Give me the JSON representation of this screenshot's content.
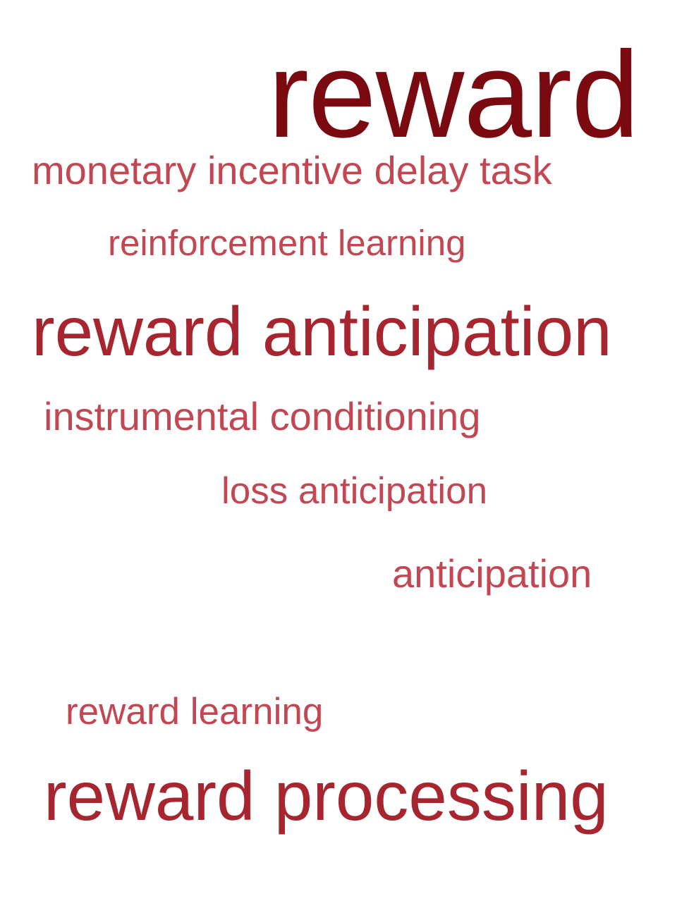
{
  "word_cloud": {
    "words": [
      {
        "text": "reward",
        "color": "#7a0a10"
      },
      {
        "text": "monetary incentive delay task",
        "color": "#c24752"
      },
      {
        "text": "reinforcement learning",
        "color": "#c24752"
      },
      {
        "text": "reward anticipation",
        "color": "#a6252e"
      },
      {
        "text": "instrumental conditioning",
        "color": "#c24752"
      },
      {
        "text": "loss anticipation",
        "color": "#c24752"
      },
      {
        "text": "anticipation",
        "color": "#c24752"
      },
      {
        "text": "reward learning",
        "color": "#c24752"
      },
      {
        "text": "reward processing",
        "color": "#a6252e"
      }
    ]
  }
}
